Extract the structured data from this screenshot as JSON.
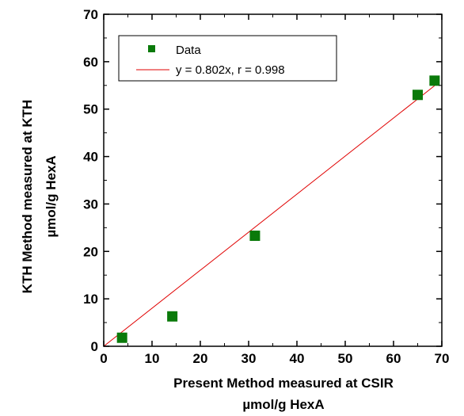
{
  "chart_data": {
    "type": "scatter",
    "xlabel": [
      "Present Method measured at CSIR",
      "µmol/g HexA"
    ],
    "ylabel": [
      "KTH Method measured at KTH",
      "µmol/g HexA"
    ],
    "xlim": [
      0,
      70
    ],
    "ylim": [
      0,
      70
    ],
    "xticks": [
      "0",
      "10",
      "20",
      "30",
      "40",
      "50",
      "60",
      "70"
    ],
    "yticks": [
      "0",
      "10",
      "20",
      "30",
      "40",
      "50",
      "60",
      "70"
    ],
    "grid": false,
    "legend_position": "top-left",
    "series": [
      {
        "name": "Data",
        "kind": "scatter",
        "marker": "square",
        "color": "#0a7a0a",
        "points": [
          {
            "x": 3.8,
            "y": 1.8
          },
          {
            "x": 14.2,
            "y": 6.3
          },
          {
            "x": 31.3,
            "y": 23.3
          },
          {
            "x": 65.0,
            "y": 53.0
          },
          {
            "x": 68.5,
            "y": 56.0
          }
        ]
      },
      {
        "name": "y = 0.802x, r = 0.998",
        "kind": "line",
        "color": "#e00000",
        "slope": 0.802,
        "x_range": [
          0,
          68.5
        ]
      }
    ]
  }
}
